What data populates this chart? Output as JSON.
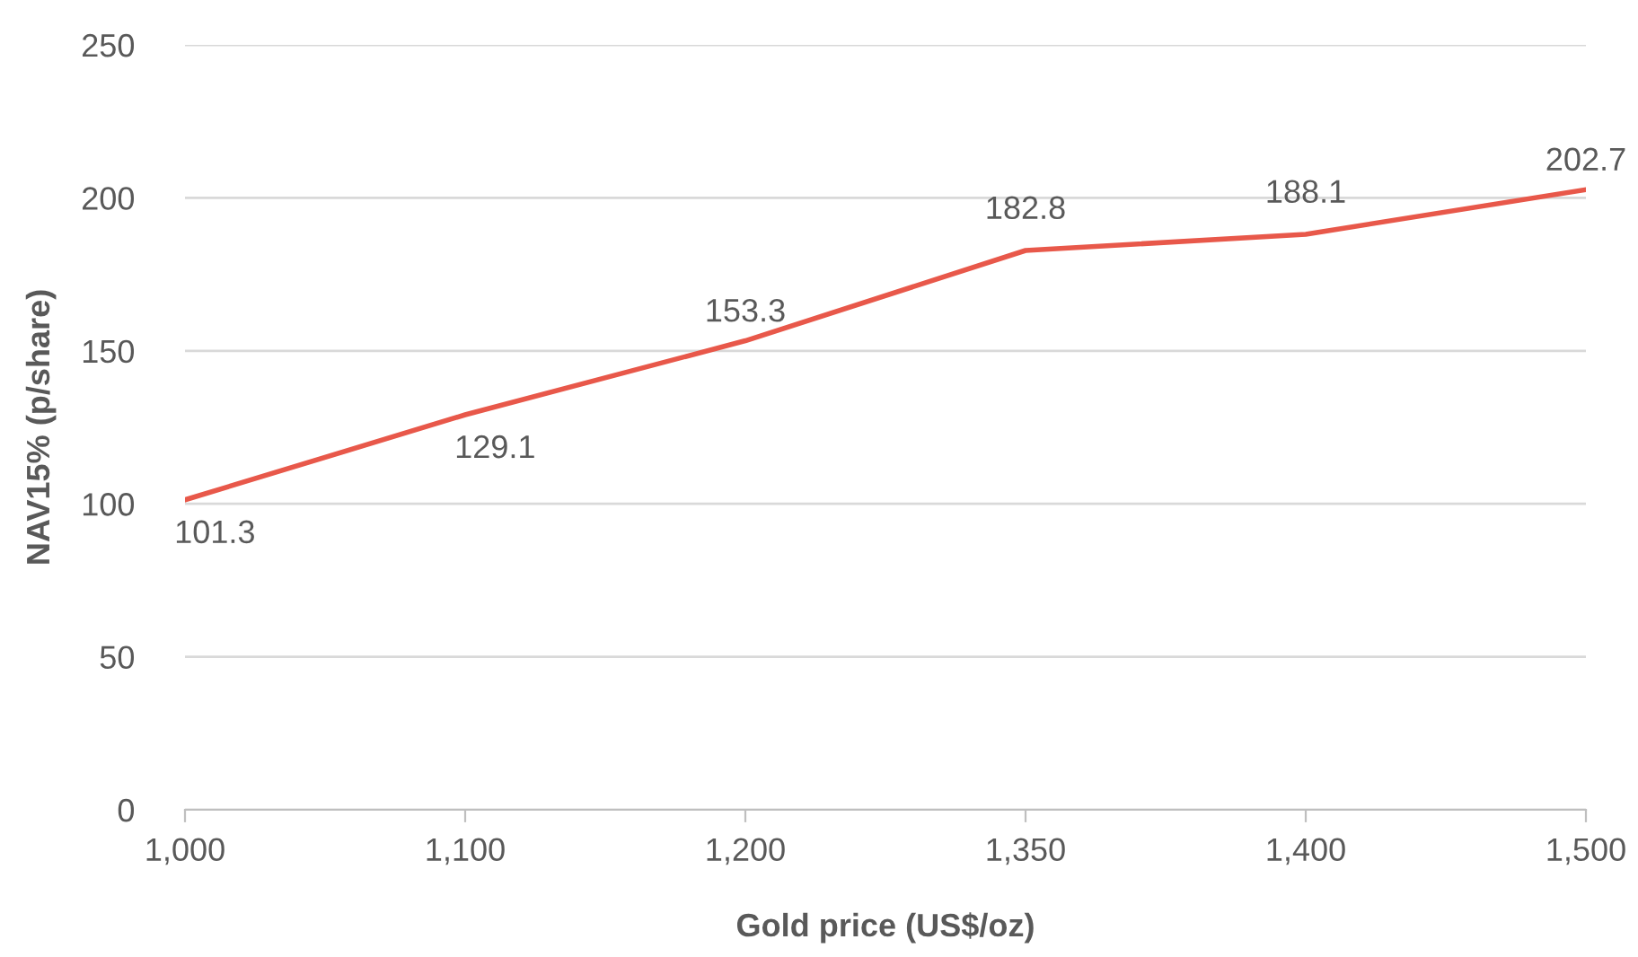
{
  "chart_data": {
    "type": "line",
    "xlabel": "Gold price (US$/oz)",
    "ylabel": "NAV15% (p/share)",
    "categories": [
      "1,000",
      "1,100",
      "1,200",
      "1,350",
      "1,400",
      "1,500"
    ],
    "series": [
      {
        "color": "#e8584a",
        "values": [
          101.3,
          129.1,
          153.3,
          182.8,
          188.1,
          202.7
        ]
      }
    ],
    "ylim": [
      0,
      250
    ],
    "yticks": [
      0,
      50,
      100,
      150,
      200,
      250
    ],
    "grid": "y",
    "data_labels": true,
    "marker": "none",
    "line_style": "solid"
  }
}
